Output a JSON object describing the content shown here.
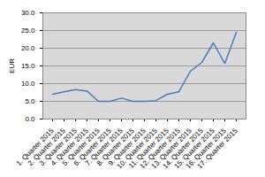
{
  "chart_data": {
    "type": "line",
    "y_label": "EUR",
    "categories": [
      "1. Quarter 2015",
      "2. Quarter 2015",
      "3. Quarter 2015",
      "4. Quarter 2015",
      "5. Quarter 2015",
      "6. Quarter 2015",
      "7. Quarter 2015",
      "8. Quarter 2015",
      "9. Quarter 2015",
      "10. Quarter 2015",
      "11. Quarter 2015",
      "12. Quarter 2015",
      "13. Quarter 2015",
      "14. Quarter 2015",
      "15. Quarter 2015",
      "16. Quarter 2015",
      "17. Quarter 2015"
    ],
    "values": [
      7.0,
      7.7,
      8.3,
      7.9,
      5.0,
      5.0,
      5.9,
      5.0,
      5.0,
      5.2,
      7.0,
      7.7,
      13.5,
      16.0,
      21.5,
      15.7,
      24.5
    ],
    "color": "#4a7ebb",
    "ylim": [
      0,
      30
    ],
    "yticks": [
      {
        "value": 0,
        "label": "0.0"
      },
      {
        "value": 5,
        "label": "5.0"
      },
      {
        "value": 10,
        "label": "10.0"
      },
      {
        "value": 15,
        "label": "15.0"
      },
      {
        "value": 20,
        "label": "20.0"
      },
      {
        "value": 25,
        "label": "25.0"
      },
      {
        "value": 30,
        "label": "30.0"
      }
    ],
    "grid": true
  }
}
